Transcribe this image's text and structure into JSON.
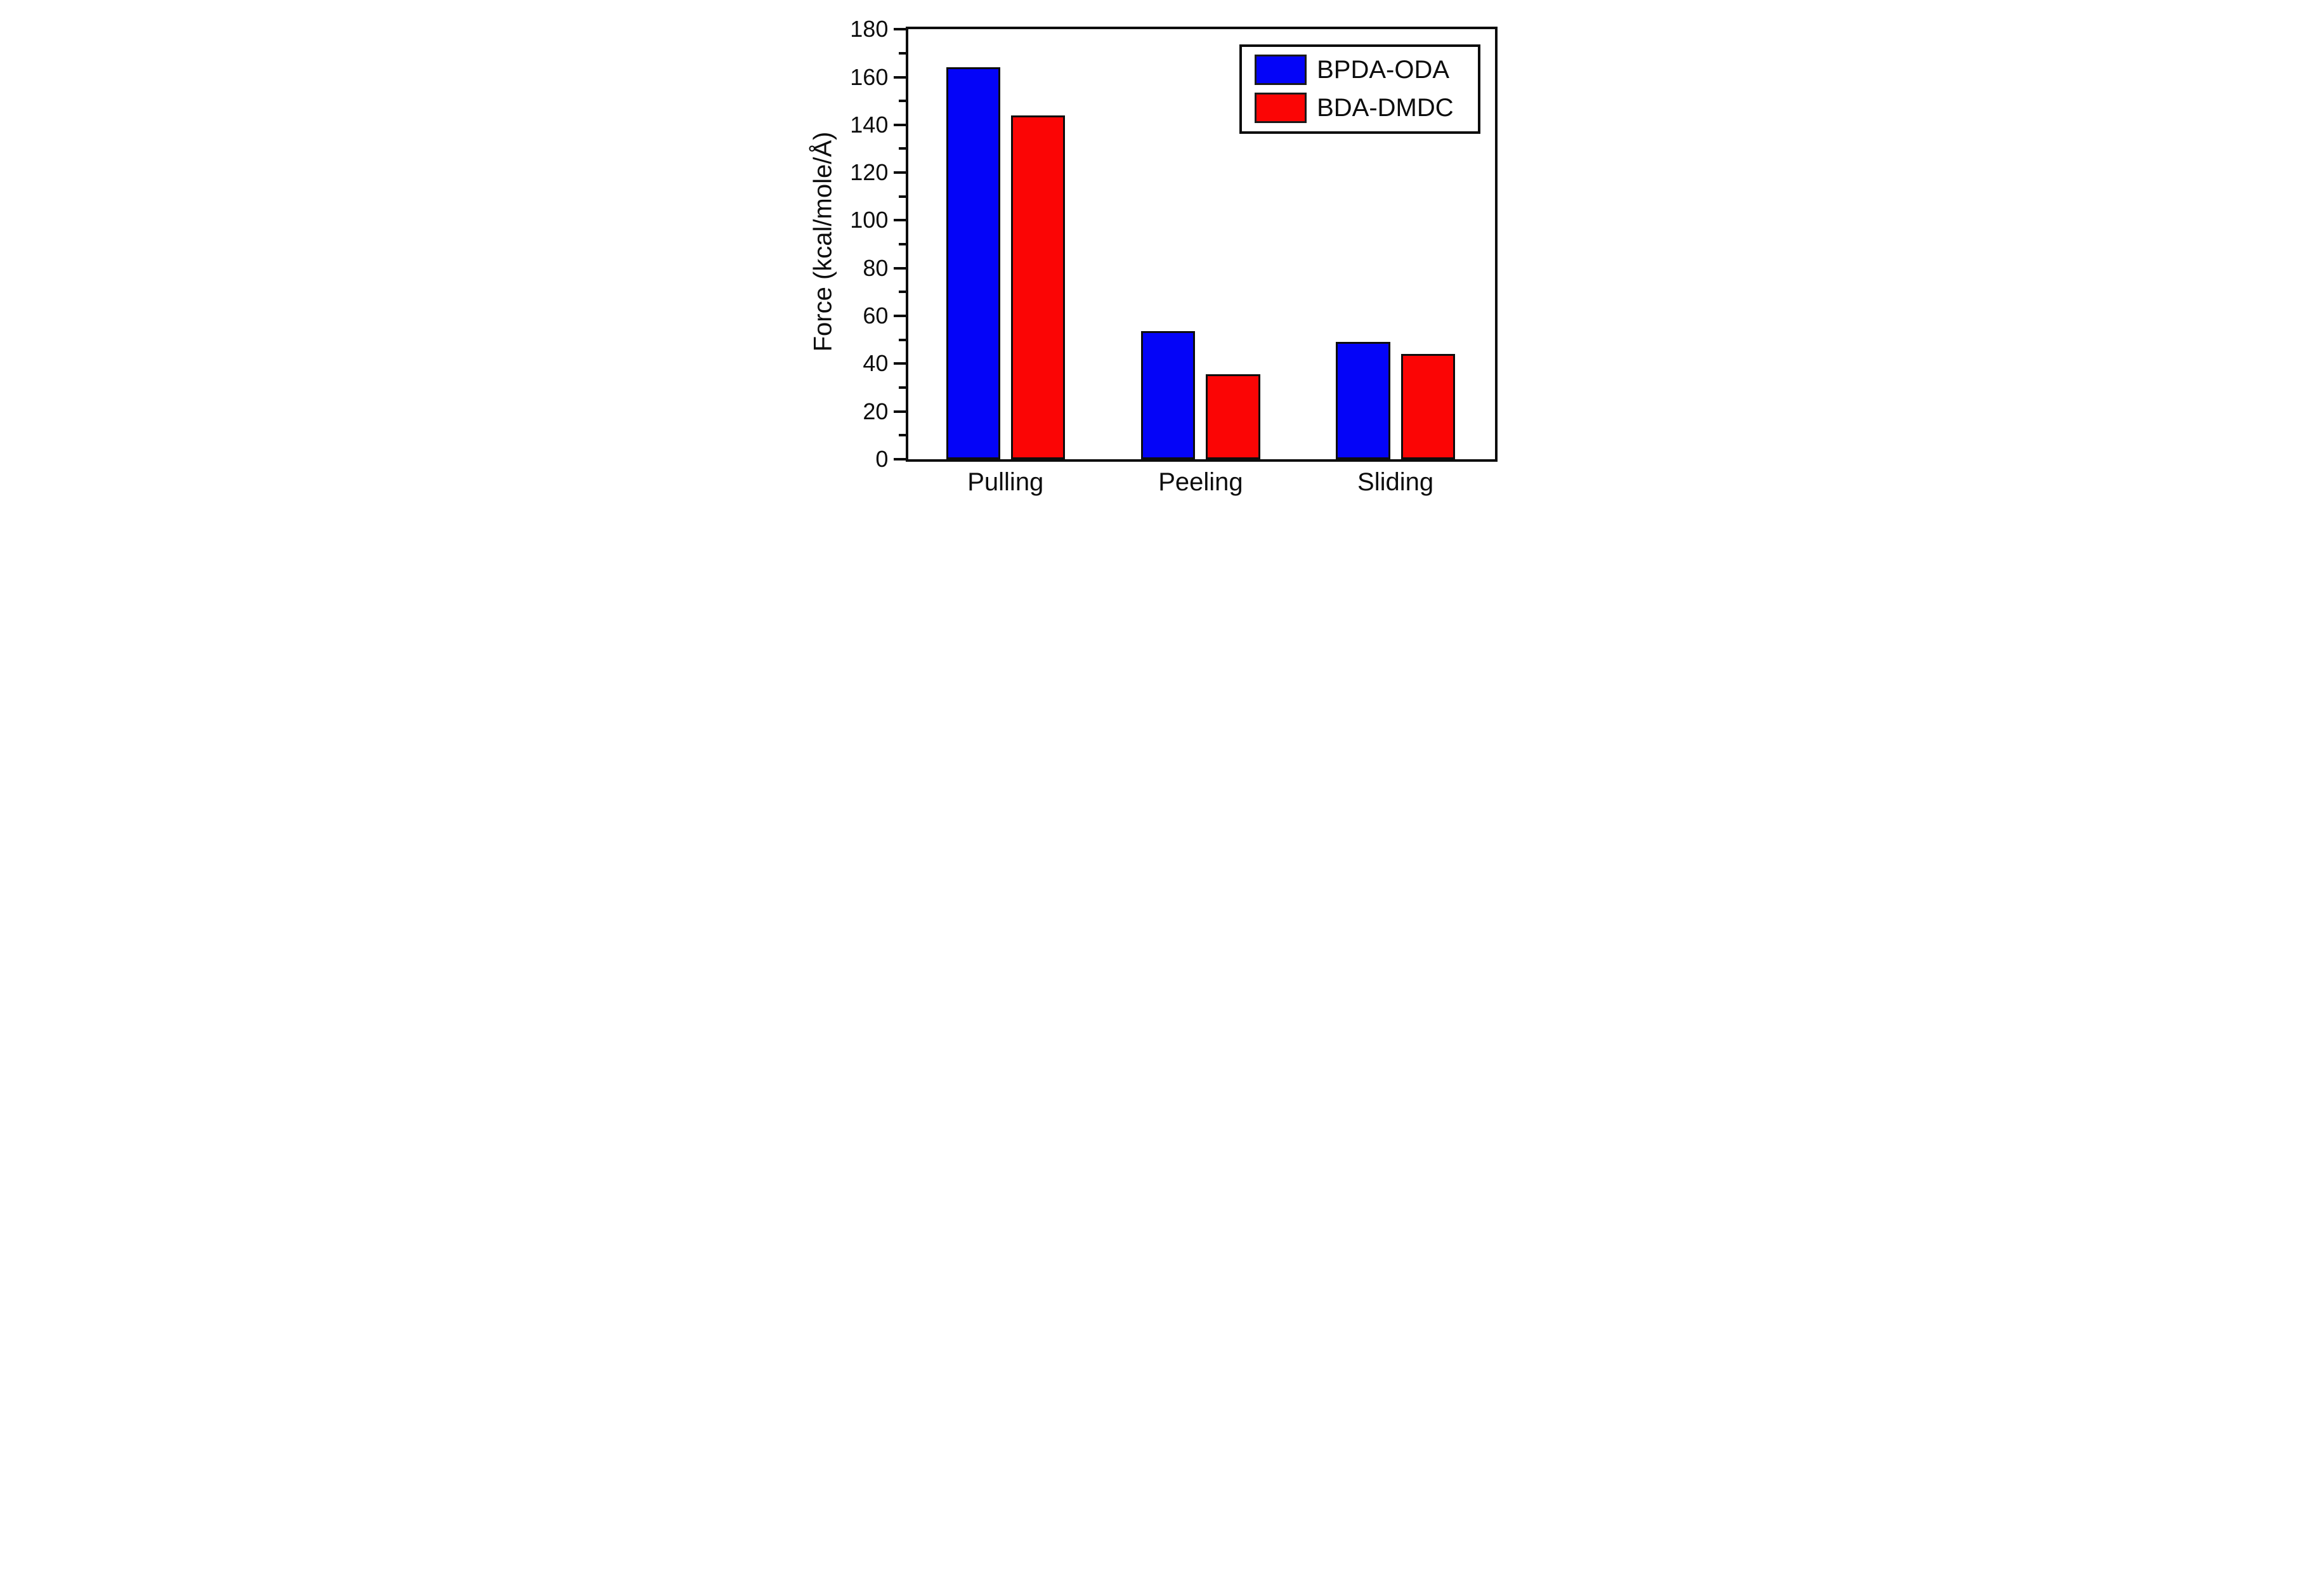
{
  "figure": {
    "background": "#ffffff"
  },
  "chart_data": {
    "type": "bar",
    "title": "",
    "categories": [
      "Pulling",
      "Peeling",
      "Sliding"
    ],
    "series": [
      {
        "name": "BPDA-ODA",
        "color": "#0404f8",
        "values": [
          164,
          53.5,
          49
        ]
      },
      {
        "name": "BDA-DMDC",
        "color": "#fb0505",
        "values": [
          144,
          35.5,
          44
        ]
      }
    ],
    "ylabel": "Force (kcal/mole/Å)",
    "ylim": [
      0,
      180
    ],
    "ytick_major": 20,
    "ytick_minor": 10,
    "ytick_labels": [
      "0",
      "20",
      "40",
      "60",
      "80",
      "100",
      "120",
      "140",
      "160",
      "180"
    ],
    "grid": false,
    "legend_position": "top-right",
    "bar_edge_color": "#0d0d0d",
    "axis_color": "#0d0d0d"
  }
}
